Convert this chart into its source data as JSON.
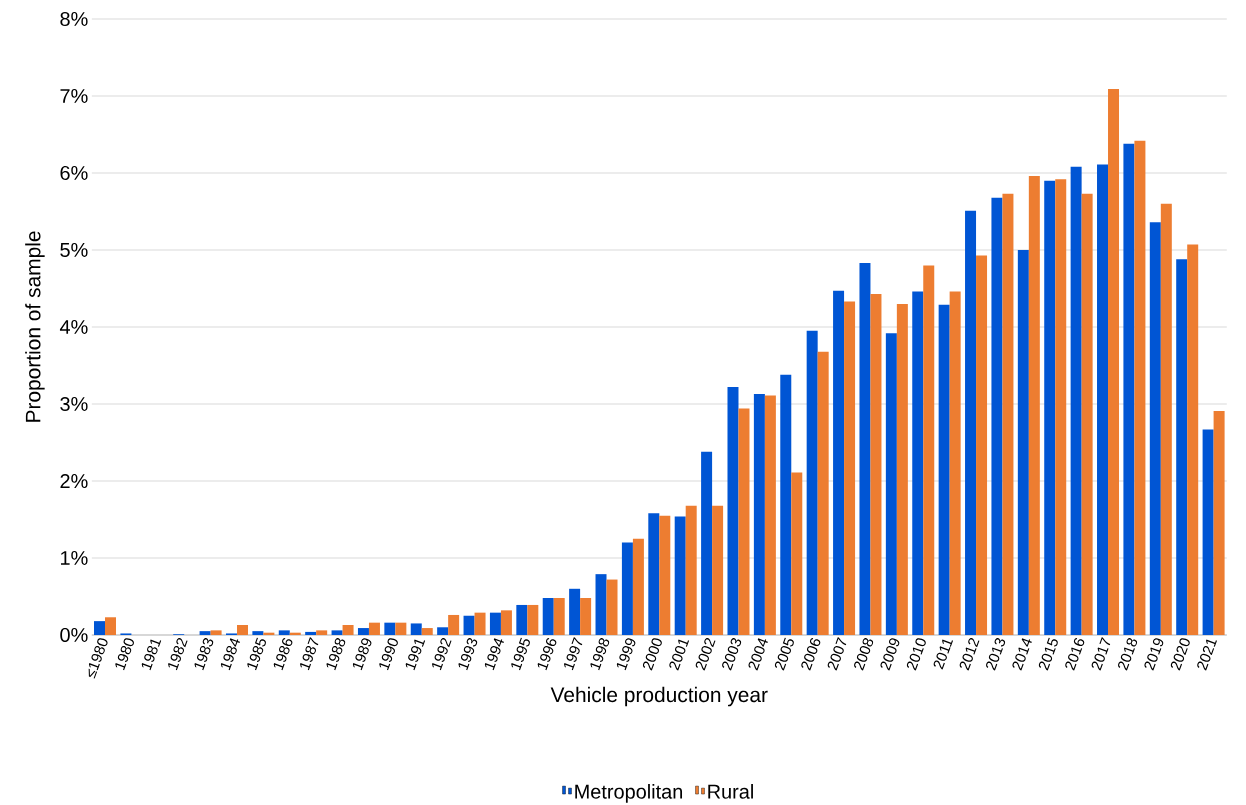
{
  "chart_data": {
    "type": "bar",
    "xlabel": "Vehicle production year",
    "ylabel": "Proportion of sample",
    "categories": [
      "≤1980",
      "1980",
      "1981",
      "1982",
      "1983",
      "1984",
      "1985",
      "1986",
      "1987",
      "1988",
      "1989",
      "1990",
      "1991",
      "1992",
      "1993",
      "1994",
      "1995",
      "1996",
      "1997",
      "1998",
      "1999",
      "2000",
      "2001",
      "2002",
      "2003",
      "2004",
      "2005",
      "2006",
      "2007",
      "2008",
      "2009",
      "2010",
      "2011",
      "2012",
      "2013",
      "2014",
      "2015",
      "2016",
      "2017",
      "2018",
      "2019",
      "2020",
      "2021"
    ],
    "series": [
      {
        "name": "Metropolitan",
        "color": "#0055d4",
        "values": [
          0.18,
          0.02,
          0,
          0.01,
          0.05,
          0.02,
          0.05,
          0.06,
          0.04,
          0.06,
          0.09,
          0.16,
          0.15,
          0.1,
          0.25,
          0.29,
          0.39,
          0.48,
          0.6,
          0.79,
          1.2,
          1.58,
          1.54,
          2.38,
          3.22,
          3.13,
          3.38,
          3.95,
          4.47,
          4.83,
          3.92,
          4.46,
          4.29,
          5.51,
          5.68,
          5.0,
          5.9,
          6.08,
          6.11,
          6.38,
          5.36,
          4.88,
          2.67
        ]
      },
      {
        "name": "Rural",
        "color": "#ed7d31",
        "values": [
          0.23,
          0,
          0,
          0,
          0.06,
          0.13,
          0.03,
          0.03,
          0.06,
          0.13,
          0.16,
          0.16,
          0.09,
          0.26,
          0.29,
          0.32,
          0.39,
          0.48,
          0.48,
          0.72,
          1.25,
          1.55,
          1.68,
          1.68,
          2.94,
          3.11,
          2.11,
          3.68,
          4.33,
          4.43,
          4.3,
          4.8,
          4.46,
          4.93,
          5.73,
          5.96,
          5.92,
          5.73,
          7.09,
          6.42,
          5.6,
          5.07,
          2.91
        ]
      }
    ],
    "ylim": [
      0,
      8
    ],
    "yticks": [
      {
        "value": 0,
        "label": "0%"
      },
      {
        "value": 1,
        "label": "1%"
      },
      {
        "value": 2,
        "label": "2%"
      },
      {
        "value": 3,
        "label": "3%"
      },
      {
        "value": 4,
        "label": "4%"
      },
      {
        "value": 5,
        "label": "5%"
      },
      {
        "value": 6,
        "label": "6%"
      },
      {
        "value": 7,
        "label": "7%"
      },
      {
        "value": 8,
        "label": "8%"
      }
    ],
    "grid": "y",
    "legend": "bottom"
  }
}
